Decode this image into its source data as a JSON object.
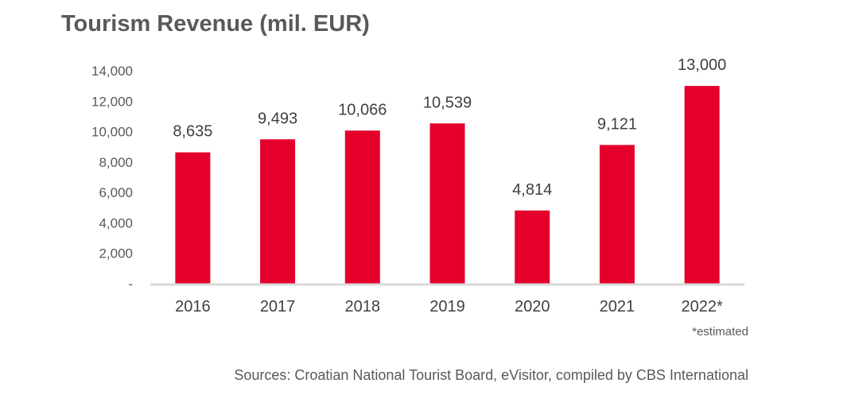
{
  "chart_data": {
    "type": "bar",
    "title": "Tourism Revenue (mil. EUR)",
    "categories": [
      "2016",
      "2017",
      "2018",
      "2019",
      "2020",
      "2021",
      "2022*"
    ],
    "values": [
      8635,
      9493,
      10066,
      10539,
      4814,
      9121,
      13000
    ],
    "data_labels": [
      "8,635",
      "9,493",
      "10,066",
      "10,539",
      "4,814",
      "9,121",
      "13,000"
    ],
    "yticks": [
      "-",
      "2,000",
      "4,000",
      "6,000",
      "8,000",
      "10,000",
      "12,000",
      "14,000"
    ],
    "ylim": [
      0,
      14000
    ],
    "xlabel": "",
    "ylabel": "",
    "grid": false,
    "bar_color": "#E4002B",
    "note": "*estimated",
    "source": "Sources: Croatian National Tourist Board, eVisitor, compiled by CBS International"
  }
}
